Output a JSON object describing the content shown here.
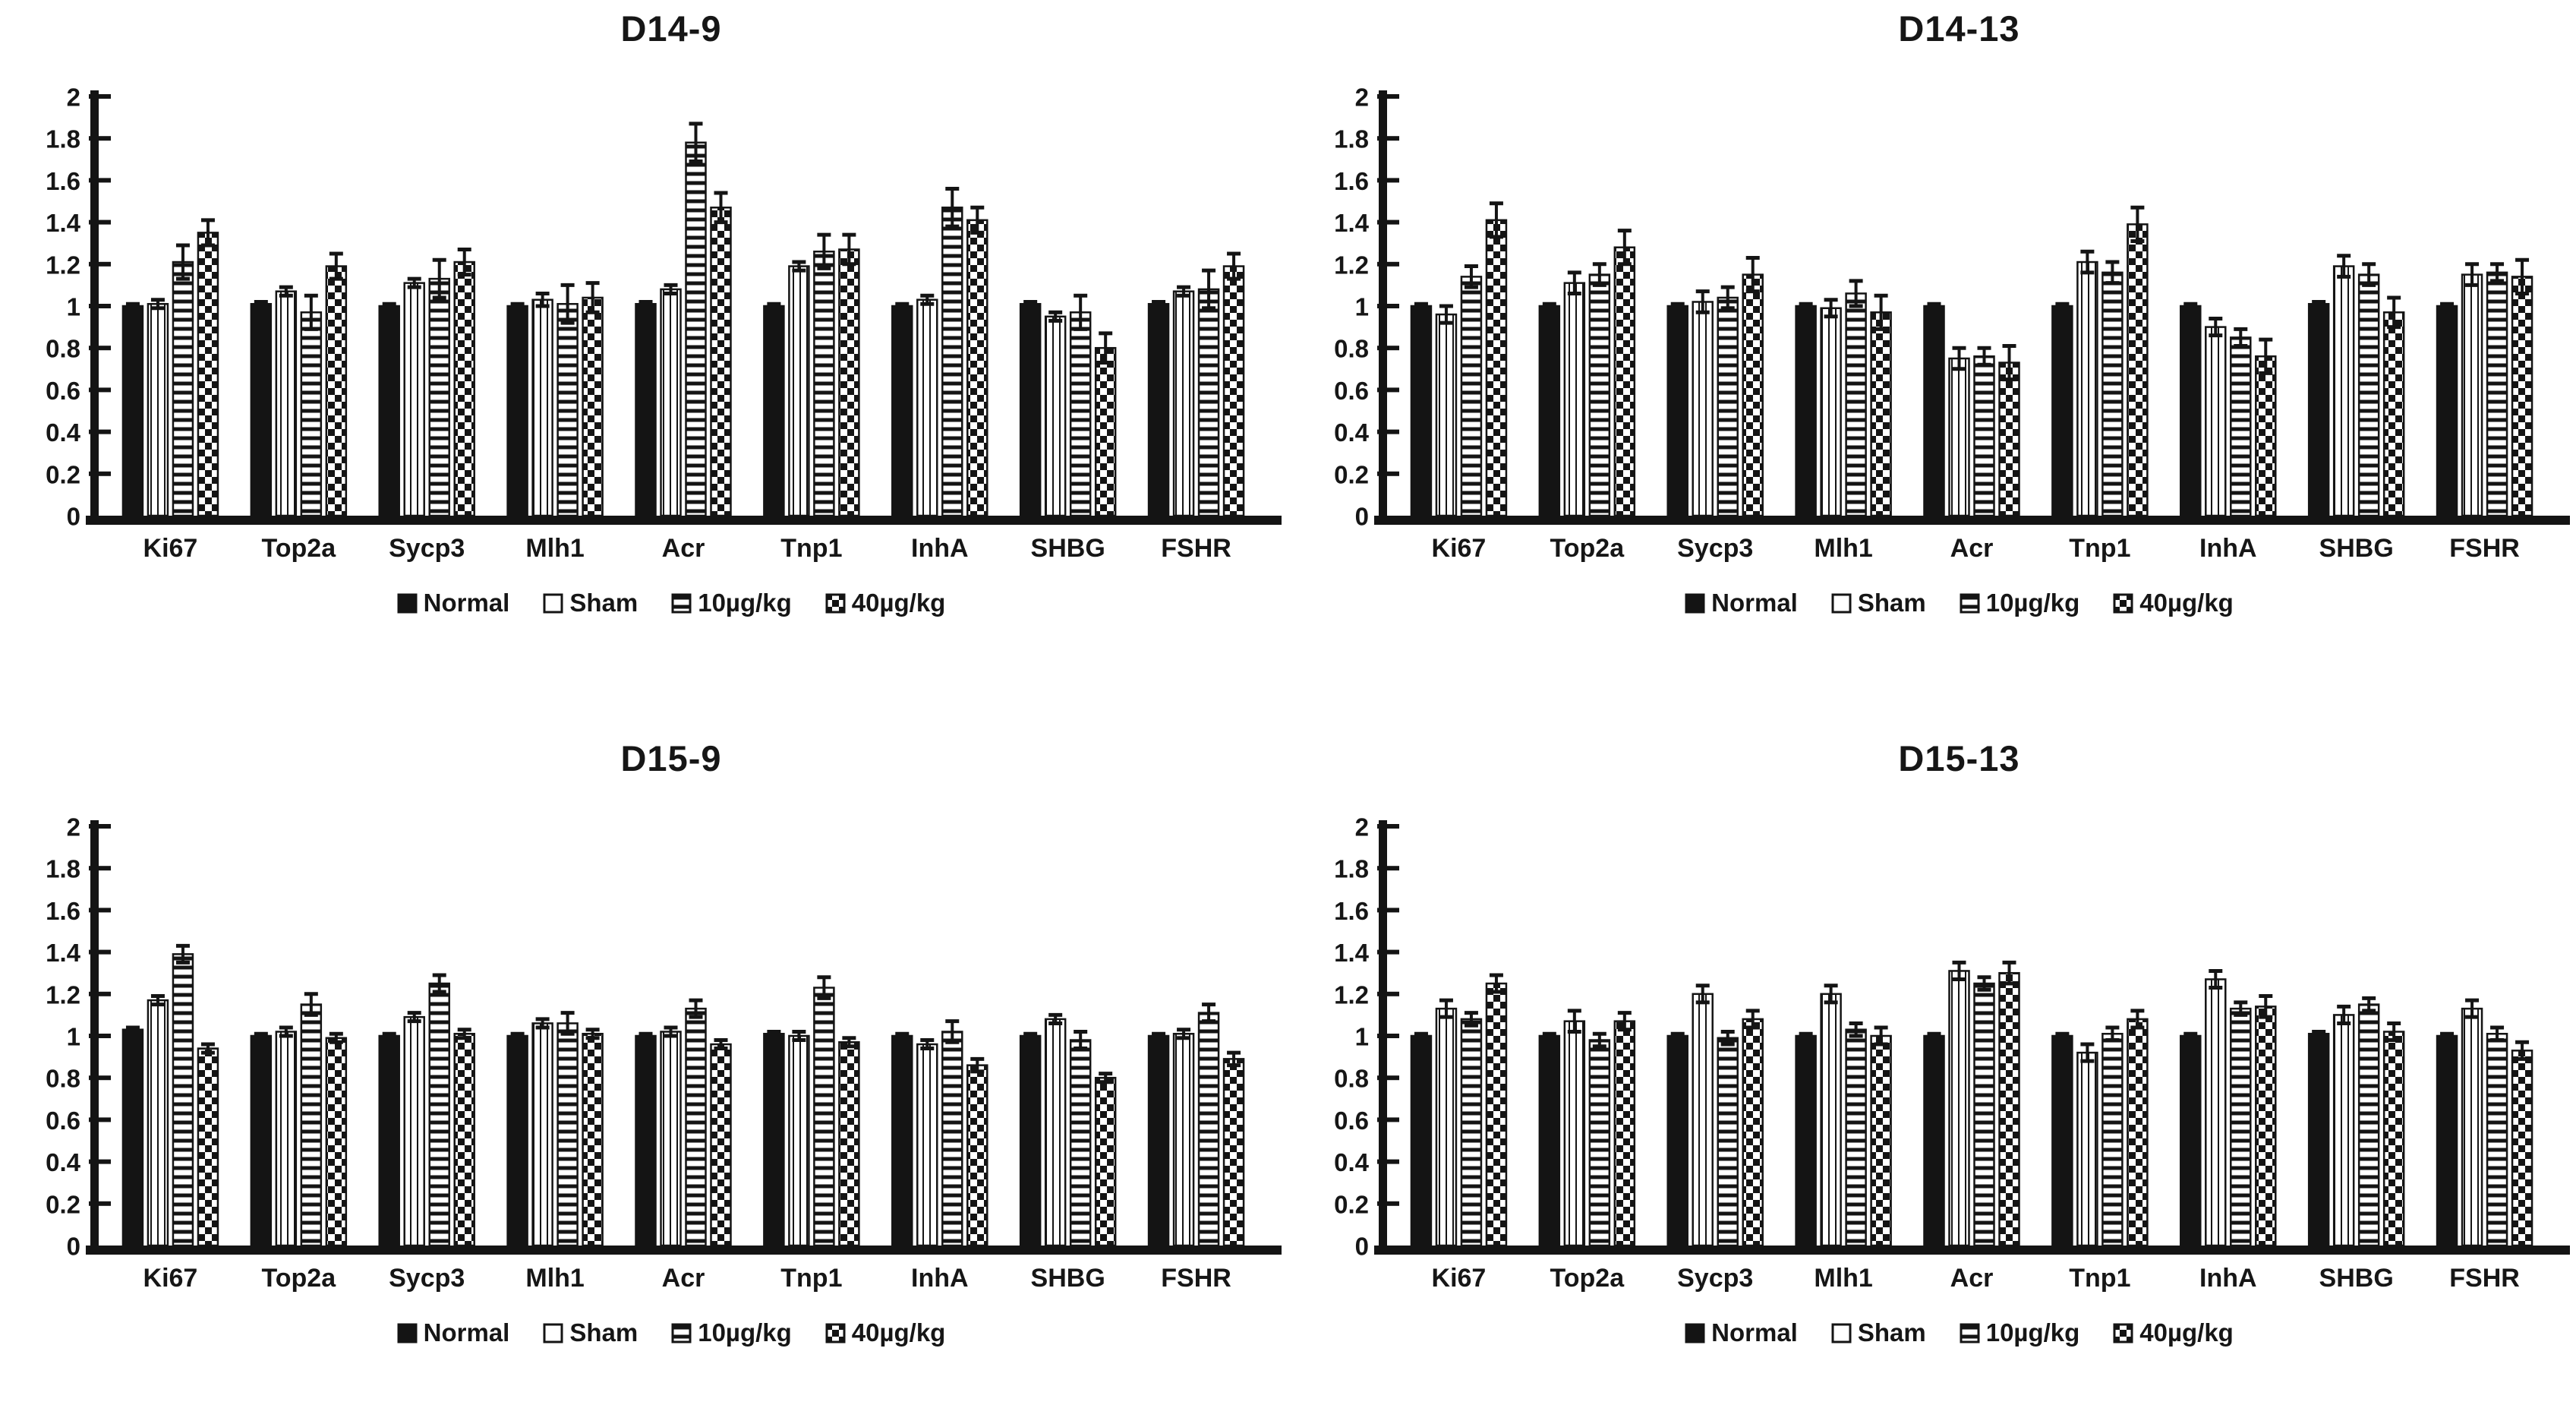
{
  "figure": {
    "background": "#ffffff",
    "ink": "#141414"
  },
  "axis": {
    "ylim": [
      0,
      2
    ],
    "tick_step": 0.2,
    "ticks": [
      "0",
      "0.2",
      "0.4",
      "0.6",
      "0.8",
      "1",
      "1.2",
      "1.4",
      "1.6",
      "1.8",
      "2"
    ],
    "grid": "off"
  },
  "legend_position": "bottom-center",
  "chart_data": [
    {
      "type": "bar",
      "title": "D14-9",
      "xlabel": "",
      "ylabel": "",
      "ylim": [
        0,
        2
      ],
      "categories": [
        "Ki67",
        "Top2a",
        "Sycp3",
        "Mlh1",
        "Acr",
        "Tnp1",
        "InhA",
        "SHBG",
        "FSHR"
      ],
      "series": [
        {
          "name": "Normal",
          "pattern": "solid",
          "values": [
            1.0,
            1.01,
            1.0,
            1.0,
            1.01,
            1.0,
            1.0,
            1.01,
            1.01
          ],
          "errors": [
            0.01,
            0.01,
            0.01,
            0.01,
            0.01,
            0.01,
            0.01,
            0.01,
            0.01
          ]
        },
        {
          "name": "Sham",
          "pattern": "vlines",
          "values": [
            1.01,
            1.07,
            1.11,
            1.03,
            1.08,
            1.19,
            1.03,
            0.95,
            1.07
          ],
          "errors": [
            0.02,
            0.02,
            0.02,
            0.03,
            0.02,
            0.02,
            0.02,
            0.02,
            0.02
          ]
        },
        {
          "name": "10µg/kg",
          "pattern": "hstripes",
          "values": [
            1.21,
            0.97,
            1.13,
            1.01,
            1.78,
            1.26,
            1.47,
            0.97,
            1.08
          ],
          "errors": [
            0.08,
            0.08,
            0.09,
            0.09,
            0.09,
            0.08,
            0.09,
            0.08,
            0.09
          ]
        },
        {
          "name": "40µg/kg",
          "pattern": "checker",
          "values": [
            1.35,
            1.19,
            1.21,
            1.04,
            1.47,
            1.27,
            1.41,
            0.8,
            1.19
          ],
          "errors": [
            0.06,
            0.06,
            0.06,
            0.07,
            0.07,
            0.07,
            0.06,
            0.07,
            0.06
          ]
        }
      ]
    },
    {
      "type": "bar",
      "title": "D14-13",
      "xlabel": "",
      "ylabel": "",
      "ylim": [
        0,
        2
      ],
      "categories": [
        "Ki67",
        "Top2a",
        "Sycp3",
        "Mlh1",
        "Acr",
        "Tnp1",
        "InhA",
        "SHBG",
        "FSHR"
      ],
      "series": [
        {
          "name": "Normal",
          "pattern": "solid",
          "values": [
            1.0,
            1.0,
            1.0,
            1.0,
            1.0,
            1.0,
            1.0,
            1.01,
            1.0
          ],
          "errors": [
            0.01,
            0.01,
            0.01,
            0.01,
            0.01,
            0.01,
            0.01,
            0.01,
            0.01
          ]
        },
        {
          "name": "Sham",
          "pattern": "vlines",
          "values": [
            0.96,
            1.11,
            1.02,
            0.99,
            0.75,
            1.21,
            0.9,
            1.19,
            1.15
          ],
          "errors": [
            0.04,
            0.05,
            0.05,
            0.04,
            0.05,
            0.05,
            0.04,
            0.05,
            0.05
          ]
        },
        {
          "name": "10µg/kg",
          "pattern": "hstripes",
          "values": [
            1.14,
            1.15,
            1.04,
            1.06,
            0.76,
            1.16,
            0.85,
            1.15,
            1.16
          ],
          "errors": [
            0.05,
            0.05,
            0.05,
            0.06,
            0.04,
            0.05,
            0.04,
            0.05,
            0.04
          ]
        },
        {
          "name": "40µg/kg",
          "pattern": "checker",
          "values": [
            1.41,
            1.28,
            1.15,
            0.97,
            0.73,
            1.39,
            0.76,
            0.97,
            1.14
          ],
          "errors": [
            0.08,
            0.08,
            0.08,
            0.08,
            0.08,
            0.08,
            0.08,
            0.07,
            0.08
          ]
        }
      ]
    },
    {
      "type": "bar",
      "title": "D15-9",
      "xlabel": "",
      "ylabel": "",
      "ylim": [
        0,
        2
      ],
      "categories": [
        "Ki67",
        "Top2a",
        "Sycp3",
        "Mlh1",
        "Acr",
        "Tnp1",
        "InhA",
        "SHBG",
        "FSHR"
      ],
      "series": [
        {
          "name": "Normal",
          "pattern": "solid",
          "values": [
            1.03,
            1.0,
            1.0,
            1.0,
            1.0,
            1.01,
            1.0,
            1.0,
            1.0
          ],
          "errors": [
            0.01,
            0.01,
            0.01,
            0.01,
            0.01,
            0.01,
            0.01,
            0.01,
            0.01
          ]
        },
        {
          "name": "Sham",
          "pattern": "vlines",
          "values": [
            1.17,
            1.02,
            1.09,
            1.06,
            1.02,
            1.0,
            0.96,
            1.08,
            1.01
          ],
          "errors": [
            0.02,
            0.02,
            0.02,
            0.02,
            0.02,
            0.02,
            0.02,
            0.02,
            0.02
          ]
        },
        {
          "name": "10µg/kg",
          "pattern": "hstripes",
          "values": [
            1.39,
            1.15,
            1.25,
            1.06,
            1.13,
            1.23,
            1.02,
            0.98,
            1.11
          ],
          "errors": [
            0.04,
            0.05,
            0.04,
            0.05,
            0.04,
            0.05,
            0.05,
            0.04,
            0.04
          ]
        },
        {
          "name": "40µg/kg",
          "pattern": "checker",
          "values": [
            0.94,
            0.99,
            1.01,
            1.01,
            0.96,
            0.97,
            0.86,
            0.8,
            0.89
          ],
          "errors": [
            0.02,
            0.02,
            0.02,
            0.02,
            0.02,
            0.02,
            0.03,
            0.02,
            0.03
          ]
        }
      ]
    },
    {
      "type": "bar",
      "title": "D15-13",
      "xlabel": "",
      "ylabel": "",
      "ylim": [
        0,
        2
      ],
      "categories": [
        "Ki67",
        "Top2a",
        "Sycp3",
        "Mlh1",
        "Acr",
        "Tnp1",
        "InhA",
        "SHBG",
        "FSHR"
      ],
      "series": [
        {
          "name": "Normal",
          "pattern": "solid",
          "values": [
            1.0,
            1.0,
            1.0,
            1.0,
            1.0,
            1.0,
            1.0,
            1.01,
            1.0
          ],
          "errors": [
            0.01,
            0.01,
            0.01,
            0.01,
            0.01,
            0.01,
            0.01,
            0.01,
            0.01
          ]
        },
        {
          "name": "Sham",
          "pattern": "vlines",
          "values": [
            1.13,
            1.07,
            1.2,
            1.2,
            1.31,
            0.92,
            1.27,
            1.1,
            1.13
          ],
          "errors": [
            0.04,
            0.05,
            0.04,
            0.04,
            0.04,
            0.04,
            0.04,
            0.04,
            0.04
          ]
        },
        {
          "name": "10µg/kg",
          "pattern": "hstripes",
          "values": [
            1.08,
            0.98,
            0.99,
            1.03,
            1.25,
            1.01,
            1.13,
            1.15,
            1.01
          ],
          "errors": [
            0.03,
            0.03,
            0.03,
            0.03,
            0.03,
            0.03,
            0.03,
            0.03,
            0.03
          ]
        },
        {
          "name": "40µg/kg",
          "pattern": "checker",
          "values": [
            1.25,
            1.07,
            1.08,
            1.0,
            1.3,
            1.08,
            1.14,
            1.02,
            0.93
          ],
          "errors": [
            0.04,
            0.04,
            0.04,
            0.04,
            0.05,
            0.04,
            0.05,
            0.04,
            0.04
          ]
        }
      ]
    }
  ]
}
